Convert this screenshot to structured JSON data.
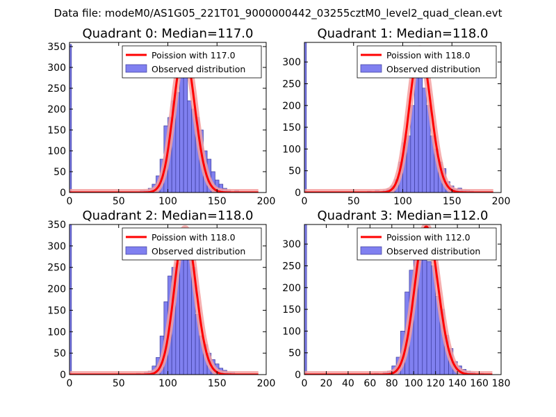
{
  "figure": {
    "suptitle": "Data file: modeM0/AS1G05_221T01_9000000442_03255cztM0_level2_quad_clean.evt"
  },
  "colors": {
    "bar_fill": "#8080f0",
    "bar_edge": "#3a3a9a",
    "curve": "#ff0000",
    "curve_halo": "#f4a0a0",
    "legend_bar": "#8080f0"
  },
  "chart_data": [
    {
      "type": "bar",
      "title": "Quadrant 0: Median=117.0",
      "median": 117.0,
      "xlim": [
        0,
        200
      ],
      "ylim": [
        0,
        360
      ],
      "xticks": [
        0,
        50,
        100,
        150,
        200
      ],
      "xtick_labels": [
        "0",
        "50",
        "100",
        "150",
        "200"
      ],
      "yticks": [
        0,
        50,
        100,
        150,
        200,
        250,
        300,
        350
      ],
      "ytick_labels": [
        "0",
        "50",
        "100",
        "150",
        "200",
        "250",
        "300",
        "350"
      ],
      "bin_width": 4,
      "bins": [
        {
          "x": 0,
          "h": 355,
          "w": 2
        },
        {
          "x": 68,
          "h": 2
        },
        {
          "x": 72,
          "h": 5
        },
        {
          "x": 76,
          "h": 5
        },
        {
          "x": 80,
          "h": 10
        },
        {
          "x": 84,
          "h": 20
        },
        {
          "x": 88,
          "h": 40
        },
        {
          "x": 92,
          "h": 80
        },
        {
          "x": 96,
          "h": 160
        },
        {
          "x": 100,
          "h": 180
        },
        {
          "x": 104,
          "h": 220
        },
        {
          "x": 108,
          "h": 240
        },
        {
          "x": 112,
          "h": 300
        },
        {
          "x": 116,
          "h": 330
        },
        {
          "x": 120,
          "h": 220
        },
        {
          "x": 124,
          "h": 200
        },
        {
          "x": 128,
          "h": 180
        },
        {
          "x": 132,
          "h": 150
        },
        {
          "x": 136,
          "h": 100
        },
        {
          "x": 140,
          "h": 80
        },
        {
          "x": 144,
          "h": 50
        },
        {
          "x": 148,
          "h": 30
        },
        {
          "x": 152,
          "h": 20
        },
        {
          "x": 156,
          "h": 10
        },
        {
          "x": 160,
          "h": 5
        },
        {
          "x": 168,
          "h": 5
        }
      ],
      "legend": [
        "Poission with 117.0",
        "Observed distribution"
      ]
    },
    {
      "type": "bar",
      "title": "Quadrant 1: Median=118.0",
      "median": 118.0,
      "xlim": [
        0,
        200
      ],
      "ylim": [
        0,
        345
      ],
      "xticks": [
        0,
        50,
        100,
        150,
        200
      ],
      "xtick_labels": [
        "0",
        "50",
        "100",
        "150",
        "200"
      ],
      "yticks": [
        0,
        50,
        100,
        150,
        200,
        250,
        300
      ],
      "ytick_labels": [
        "0",
        "50",
        "100",
        "150",
        "200",
        "250",
        "300"
      ],
      "bin_width": 4,
      "bins": [
        {
          "x": 0,
          "h": 345,
          "w": 2
        },
        {
          "x": 64,
          "h": 3
        },
        {
          "x": 72,
          "h": 5
        },
        {
          "x": 80,
          "h": 5
        },
        {
          "x": 84,
          "h": 8
        },
        {
          "x": 88,
          "h": 15
        },
        {
          "x": 92,
          "h": 30
        },
        {
          "x": 96,
          "h": 70
        },
        {
          "x": 100,
          "h": 115
        },
        {
          "x": 104,
          "h": 130
        },
        {
          "x": 108,
          "h": 200
        },
        {
          "x": 112,
          "h": 270
        },
        {
          "x": 116,
          "h": 320
        },
        {
          "x": 120,
          "h": 240
        },
        {
          "x": 124,
          "h": 200
        },
        {
          "x": 128,
          "h": 130
        },
        {
          "x": 132,
          "h": 100
        },
        {
          "x": 136,
          "h": 70
        },
        {
          "x": 140,
          "h": 55
        },
        {
          "x": 144,
          "h": 25
        },
        {
          "x": 148,
          "h": 15
        },
        {
          "x": 152,
          "h": 8
        },
        {
          "x": 156,
          "h": 10
        },
        {
          "x": 160,
          "h": 5
        },
        {
          "x": 164,
          "h": 5
        },
        {
          "x": 168,
          "h": 3
        }
      ],
      "legend": [
        "Poission with 118.0",
        "Observed distribution"
      ]
    },
    {
      "type": "bar",
      "title": "Quadrant 2: Median=118.0",
      "median": 118.0,
      "xlim": [
        0,
        200
      ],
      "ylim": [
        0,
        350
      ],
      "xticks": [
        0,
        50,
        100,
        150,
        200
      ],
      "xtick_labels": [
        "0",
        "50",
        "100",
        "150",
        "200"
      ],
      "yticks": [
        0,
        50,
        100,
        150,
        200,
        250,
        300,
        350
      ],
      "ytick_labels": [
        "0",
        "50",
        "100",
        "150",
        "200",
        "250",
        "300",
        "350"
      ],
      "bin_width": 4,
      "bins": [
        {
          "x": 0,
          "h": 350,
          "w": 2
        },
        {
          "x": 68,
          "h": 3
        },
        {
          "x": 76,
          "h": 5
        },
        {
          "x": 80,
          "h": 8
        },
        {
          "x": 84,
          "h": 20
        },
        {
          "x": 88,
          "h": 40
        },
        {
          "x": 92,
          "h": 90
        },
        {
          "x": 96,
          "h": 170
        },
        {
          "x": 100,
          "h": 230
        },
        {
          "x": 104,
          "h": 250
        },
        {
          "x": 108,
          "h": 260
        },
        {
          "x": 112,
          "h": 320
        },
        {
          "x": 116,
          "h": 330
        },
        {
          "x": 120,
          "h": 270
        },
        {
          "x": 124,
          "h": 250
        },
        {
          "x": 128,
          "h": 140
        },
        {
          "x": 132,
          "h": 90
        },
        {
          "x": 136,
          "h": 70
        },
        {
          "x": 140,
          "h": 50
        },
        {
          "x": 144,
          "h": 35
        },
        {
          "x": 148,
          "h": 25
        },
        {
          "x": 152,
          "h": 15
        },
        {
          "x": 156,
          "h": 10
        },
        {
          "x": 160,
          "h": 5
        },
        {
          "x": 164,
          "h": 5
        }
      ],
      "legend": [
        "Poission with 118.0",
        "Observed distribution"
      ]
    },
    {
      "type": "bar",
      "title": "Quadrant 3: Median=112.0",
      "median": 112.0,
      "xlim": [
        0,
        180
      ],
      "ylim": [
        0,
        345
      ],
      "xticks": [
        0,
        20,
        40,
        60,
        80,
        100,
        120,
        140,
        160,
        180
      ],
      "xtick_labels": [
        "0",
        "20",
        "40",
        "60",
        "80",
        "100",
        "120",
        "140",
        "160",
        "180"
      ],
      "yticks": [
        0,
        50,
        100,
        150,
        200,
        250,
        300
      ],
      "ytick_labels": [
        "0",
        "50",
        "100",
        "150",
        "200",
        "250",
        "300"
      ],
      "bin_width": 4,
      "bins": [
        {
          "x": 0,
          "h": 345,
          "w": 2
        },
        {
          "x": 64,
          "h": 3
        },
        {
          "x": 72,
          "h": 5
        },
        {
          "x": 76,
          "h": 8
        },
        {
          "x": 80,
          "h": 20
        },
        {
          "x": 84,
          "h": 40
        },
        {
          "x": 88,
          "h": 100
        },
        {
          "x": 92,
          "h": 190
        },
        {
          "x": 96,
          "h": 240
        },
        {
          "x": 100,
          "h": 320
        },
        {
          "x": 104,
          "h": 300
        },
        {
          "x": 108,
          "h": 330
        },
        {
          "x": 112,
          "h": 260
        },
        {
          "x": 116,
          "h": 250
        },
        {
          "x": 120,
          "h": 180
        },
        {
          "x": 124,
          "h": 150
        },
        {
          "x": 128,
          "h": 90
        },
        {
          "x": 132,
          "h": 60
        },
        {
          "x": 136,
          "h": 30
        },
        {
          "x": 140,
          "h": 20
        },
        {
          "x": 144,
          "h": 12
        },
        {
          "x": 148,
          "h": 8
        },
        {
          "x": 152,
          "h": 5
        },
        {
          "x": 160,
          "h": 3
        }
      ],
      "legend": [
        "Poission with 112.0",
        "Observed distribution"
      ]
    }
  ]
}
